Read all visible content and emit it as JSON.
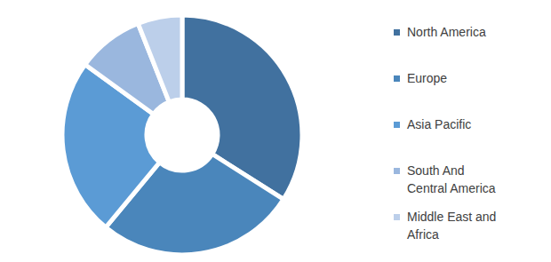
{
  "chart_data": {
    "type": "pie",
    "categories": [
      "North America",
      "Europe",
      "Asia Pacific",
      "South And Central America",
      "Middle East and Africa"
    ],
    "values": [
      34,
      27,
      24,
      9,
      6
    ],
    "colors": [
      "#41719f",
      "#4a86bb",
      "#5b9bd5",
      "#9ab7de",
      "#bccfea"
    ],
    "legend": "right"
  }
}
